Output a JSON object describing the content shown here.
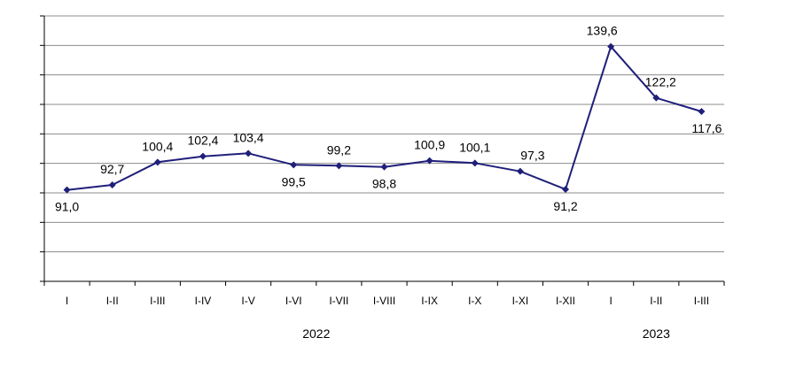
{
  "chart_data": {
    "type": "line",
    "categories": [
      "I",
      "I-II",
      "I-III",
      "I-IV",
      "I-V",
      "I-VI",
      "I-VII",
      "I-VIII",
      "I-IX",
      "I-X",
      "I-XI",
      "I-XII",
      "I",
      "I-II",
      "I-III"
    ],
    "series": [
      {
        "values": [
          91.0,
          92.7,
          100.4,
          102.4,
          103.4,
          99.5,
          99.2,
          98.8,
          100.9,
          100.1,
          97.3,
          91.2,
          139.6,
          122.2,
          117.6
        ],
        "color": "#1f1f7a"
      }
    ],
    "data_labels": [
      "91,0",
      "92,7",
      "100,4",
      "102,4",
      "103,4",
      "99,5",
      "99,2",
      "98,8",
      "100,9",
      "100,1",
      "97,3",
      "91,2",
      "139,6",
      "122,2",
      "117,6"
    ],
    "groups": [
      {
        "label": "2022",
        "categories": [
          "I",
          "I-II",
          "I-III",
          "I-IV",
          "I-V",
          "I-VI",
          "I-VII",
          "I-VIII",
          "I-IX",
          "I-X",
          "I-XI",
          "I-XII"
        ]
      },
      {
        "label": "2023",
        "categories": [
          "I",
          "I-II",
          "I-III"
        ]
      }
    ],
    "ylim": [
      60,
      150
    ],
    "y_gridlines": 9,
    "grid": true,
    "y_tick_labels_shown": false,
    "legend": "none"
  }
}
